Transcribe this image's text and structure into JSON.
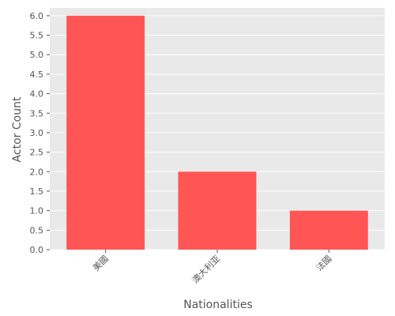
{
  "chart_data": {
    "type": "bar",
    "title": "",
    "xlabel": "Nationalities",
    "ylabel": "Actor Count",
    "categories": [
      "美國",
      "澳大利亚",
      "法國"
    ],
    "values": [
      6,
      2,
      1
    ],
    "ylim": [
      0,
      6.2
    ],
    "yticks": [
      0,
      0.5,
      1,
      1.5,
      2,
      2.5,
      3,
      3.5,
      4,
      4.5,
      5,
      5.5,
      6
    ],
    "ytick_labels": [
      "0.0",
      "0.5",
      "1.0",
      "1.5",
      "2.0",
      "2.5",
      "3.0",
      "3.5",
      "4.0",
      "4.5",
      "5.0",
      "5.5",
      "6.0"
    ],
    "grid": true,
    "legend": "none",
    "colors": {
      "bar": "#ff5555",
      "plot_background": "#e9e9e9",
      "grid": "#ffffff",
      "text": "#555555"
    }
  }
}
